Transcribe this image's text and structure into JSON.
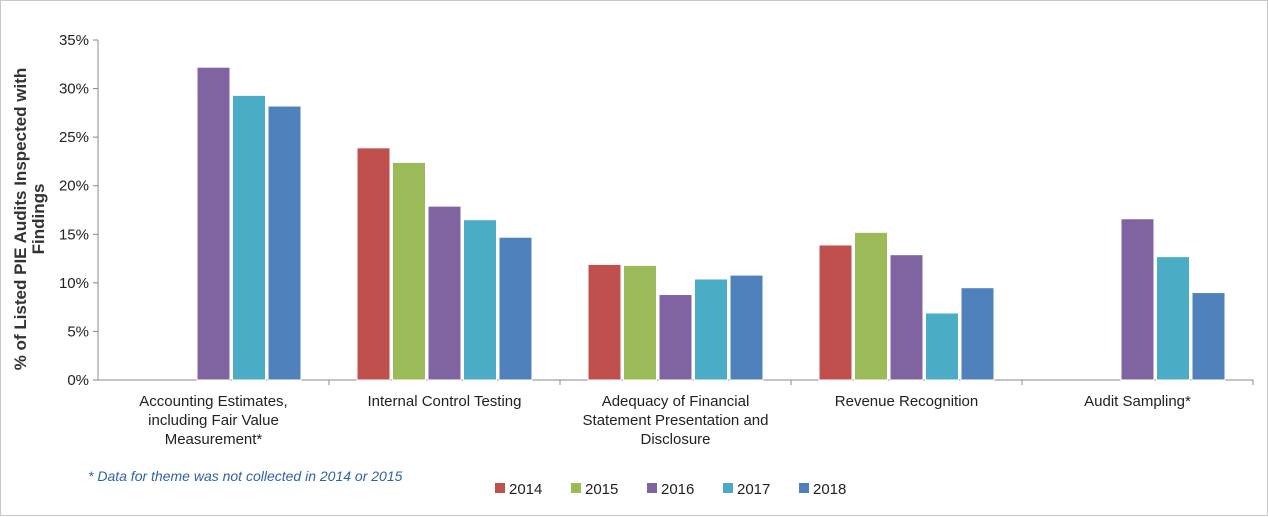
{
  "chart_data": {
    "type": "bar",
    "ylabel_lines": [
      "% of Listed PIE Audits Inspected with",
      "Findings"
    ],
    "ylim": [
      0,
      35
    ],
    "yticks": [
      "0%",
      "5%",
      "10%",
      "15%",
      "20%",
      "25%",
      "30%",
      "35%"
    ],
    "grid": false,
    "legend_position": "bottom",
    "categories": [
      [
        "Accounting Estimates,",
        "including Fair Value",
        "Measurement*"
      ],
      [
        "Internal Control Testing"
      ],
      [
        "Adequacy of Financial",
        "Statement Presentation and",
        "Disclosure"
      ],
      [
        "Revenue Recognition"
      ],
      [
        "Audit Sampling*"
      ]
    ],
    "series": [
      {
        "name": "2014",
        "color": "#c0504d",
        "values": [
          null,
          23.9,
          11.9,
          13.9,
          null
        ]
      },
      {
        "name": "2015",
        "color": "#9bbb59",
        "values": [
          null,
          22.4,
          11.8,
          15.2,
          null
        ]
      },
      {
        "name": "2016",
        "color": "#8064a2",
        "values": [
          32.2,
          17.9,
          8.8,
          12.9,
          16.6
        ]
      },
      {
        "name": "2017",
        "color": "#4bacc6",
        "values": [
          29.3,
          16.5,
          10.4,
          6.9,
          12.7
        ]
      },
      {
        "name": "2018",
        "color": "#4f81bd",
        "values": [
          28.2,
          14.7,
          10.8,
          9.5,
          9.0
        ]
      }
    ]
  },
  "footnote": "* Data for theme was not collected in 2014 or 2015"
}
